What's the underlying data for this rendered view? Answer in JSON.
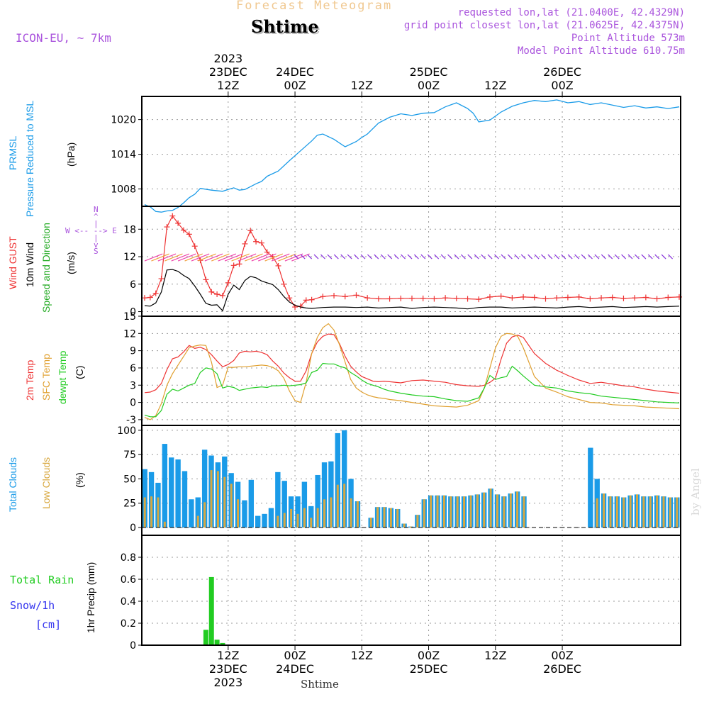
{
  "header": {
    "supertitle": "Forecast Meteogram",
    "station": "Shtime",
    "model": "ICON-EU, ~ 7km",
    "requested": "requested lon,lat (21.0400E, 42.4329N)",
    "gridpoint": "grid point closest lon,lat (21.0625E, 42.4375N)",
    "point_alt": "Point Altitude 573m",
    "model_alt": "Model Point Altitude 610.75m",
    "watermark": "by Angel",
    "footer_station": "Shtime"
  },
  "colors": {
    "pressure": "#1a9be8",
    "gust": "#ee3333",
    "wind": "#000000",
    "label_green": "#22aa22",
    "t2m": "#ee3333",
    "sfc": "#e0a030",
    "dewpt": "#22cc22",
    "total_cloud": "#1a9be8",
    "low_cloud": "#d8a840",
    "rain": "#22cc22",
    "snow": "#3333ee",
    "purple": "#aa55dd"
  },
  "panel_labels": {
    "p1": [
      "PRMSL",
      "Pressure Reduced to MSL",
      "(hPa)"
    ],
    "p2": [
      "Wind GUST",
      "10m Wind",
      "Speed and Direction",
      "(m/s)"
    ],
    "p3": [
      "2m Temp",
      "SFC Temp",
      "dewpt Temp",
      "(C)"
    ],
    "p4": [
      "Total Clouds",
      "Low Clouds",
      "(%)"
    ],
    "p5": [
      "Total  Rain",
      "Snow/1h",
      "[cm]",
      "1hr Precip (mm)"
    ],
    "compass": [
      "N",
      "^",
      "|",
      "W <-- --> E",
      "|",
      "v",
      "S"
    ]
  },
  "chart_data": {
    "type": "line",
    "time": {
      "start": "2023-12-22 21Z",
      "end": "2023-12-26 06Z",
      "step_hours": 1,
      "top_ticks": [
        {
          "h": 15,
          "lines": [
            "2023",
            "23DEC",
            "12Z"
          ]
        },
        {
          "h": 27,
          "lines": [
            "24DEC",
            "00Z"
          ]
        },
        {
          "h": 39,
          "lines": [
            "12Z"
          ]
        },
        {
          "h": 51,
          "lines": [
            "25DEC",
            "00Z"
          ]
        },
        {
          "h": 63,
          "lines": [
            "12Z"
          ]
        },
        {
          "h": 75,
          "lines": [
            "26DEC",
            "00Z"
          ]
        }
      ],
      "bottom_ticks": [
        {
          "h": 15,
          "lines": [
            "12Z",
            "23DEC",
            "2023"
          ]
        },
        {
          "h": 27,
          "lines": [
            "00Z",
            "24DEC"
          ]
        },
        {
          "h": 39,
          "lines": [
            "12Z"
          ]
        },
        {
          "h": 51,
          "lines": [
            "00Z",
            "25DEC"
          ]
        },
        {
          "h": 63,
          "lines": [
            "12Z"
          ]
        },
        {
          "h": 75,
          "lines": [
            "00Z",
            "26DEC"
          ]
        }
      ]
    },
    "pressure": {
      "ylabel": "PRMSL Pressure Reduced to MSL (hPa)",
      "yticks": [
        1008,
        1014,
        1020
      ],
      "ylim": [
        1005,
        1024
      ],
      "x": [
        0,
        1,
        2,
        3,
        4,
        5,
        6,
        7,
        8,
        9,
        10,
        12,
        14,
        15,
        16,
        17,
        18,
        19,
        20,
        21,
        22,
        24,
        26,
        28,
        30,
        31,
        32,
        34,
        36,
        38,
        39,
        40,
        42,
        44,
        46,
        48,
        50,
        52,
        54,
        56,
        58,
        59,
        60,
        62,
        64,
        66,
        68,
        70,
        72,
        74,
        76,
        78,
        80,
        82,
        84,
        86,
        88,
        90,
        92,
        94,
        96
      ],
      "values": [
        1005.3,
        1004.9,
        1004.1,
        1004.0,
        1004.2,
        1004.3,
        1004.8,
        1005.6,
        1006.5,
        1007.1,
        1008.1,
        1007.8,
        1007.6,
        1007.9,
        1008.2,
        1007.8,
        1007.9,
        1008.4,
        1008.9,
        1009.3,
        1010.2,
        1011.1,
        1012.9,
        1014.6,
        1016.3,
        1017.3,
        1017.5,
        1016.6,
        1015.3,
        1016.2,
        1016.9,
        1017.5,
        1019.4,
        1020.4,
        1021.0,
        1020.7,
        1021.1,
        1021.2,
        1022.2,
        1022.9,
        1021.9,
        1021.1,
        1019.6,
        1019.9,
        1021.3,
        1022.3,
        1022.9,
        1023.3,
        1023.1,
        1023.4,
        1022.9,
        1023.1,
        1022.6,
        1022.9,
        1022.5,
        1022.1,
        1022.4,
        1022.0,
        1022.2,
        1021.9,
        1022.2
      ]
    },
    "wind": {
      "ylabel": "(m/s)",
      "yticks": [
        0,
        6,
        12,
        18
      ],
      "ylim": [
        -1,
        23
      ],
      "gust_x": [
        0,
        1,
        2,
        3,
        4,
        5,
        6,
        7,
        8,
        9,
        10,
        11,
        12,
        13,
        14,
        15,
        16,
        17,
        18,
        19,
        20,
        21,
        22,
        23,
        24,
        25,
        26,
        27,
        28,
        29,
        30,
        32,
        34,
        36,
        38,
        40,
        42,
        44,
        46,
        48,
        50,
        52,
        54,
        56,
        58,
        60,
        62,
        64,
        66,
        68,
        70,
        72,
        74,
        76,
        78,
        80,
        82,
        84,
        86,
        88,
        90,
        92,
        94,
        96
      ],
      "gust": [
        3.0,
        3.1,
        4.0,
        7.2,
        18.5,
        20.9,
        19.3,
        17.8,
        16.9,
        14.3,
        11.2,
        7.0,
        4.3,
        3.8,
        3.5,
        6.3,
        10.1,
        10.4,
        14.8,
        17.7,
        15.3,
        15.0,
        13.0,
        12.0,
        10.0,
        6.0,
        3.0,
        1.0,
        1.2,
        2.5,
        2.6,
        3.3,
        3.5,
        3.3,
        3.6,
        3.0,
        2.8,
        2.8,
        2.9,
        2.9,
        2.9,
        2.8,
        3.0,
        2.9,
        2.8,
        2.7,
        3.2,
        3.4,
        3.0,
        3.2,
        3.1,
        2.8,
        3.0,
        3.1,
        3.2,
        2.8,
        3.0,
        3.1,
        2.9,
        3.0,
        3.1,
        2.8,
        3.1,
        3.2
      ],
      "wind_x": [
        0,
        1,
        2,
        3,
        4,
        5,
        6,
        7,
        8,
        9,
        10,
        11,
        12,
        13,
        14,
        15,
        16,
        17,
        18,
        19,
        20,
        21,
        22,
        23,
        24,
        25,
        26,
        27,
        28,
        29,
        30,
        32,
        34,
        36,
        38,
        40,
        42,
        44,
        46,
        48,
        50,
        52,
        54,
        56,
        58,
        60,
        62,
        64,
        66,
        68,
        70,
        72,
        74,
        76,
        78,
        80,
        82,
        84,
        86,
        88,
        90,
        92,
        94,
        96
      ],
      "wind": [
        1.3,
        1.2,
        1.9,
        4.3,
        9.1,
        9.2,
        8.8,
        7.9,
        7.2,
        5.6,
        3.8,
        1.8,
        1.4,
        1.5,
        0.2,
        3.8,
        5.8,
        4.8,
        6.8,
        7.7,
        7.4,
        6.7,
        6.3,
        5.9,
        4.8,
        3.3,
        2.1,
        1.4,
        1.0,
        0.8,
        0.7,
        0.9,
        1.0,
        1.0,
        0.9,
        1.0,
        0.8,
        0.9,
        1.0,
        0.7,
        0.9,
        1.0,
        0.9,
        0.8,
        0.6,
        0.9,
        1.0,
        1.0,
        0.8,
        0.9,
        1.0,
        0.9,
        0.8,
        1.0,
        1.1,
        0.9,
        1.0,
        1.1,
        0.9,
        1.0,
        1.1,
        1.0,
        1.1,
        1.2
      ]
    },
    "temperature": {
      "ylabel": "(C)",
      "yticks": [
        -3,
        0,
        3,
        6,
        9,
        12,
        15
      ],
      "ylim": [
        -4,
        15
      ],
      "x": [
        0,
        1,
        2,
        3,
        4,
        5,
        6,
        7,
        8,
        9,
        10,
        11,
        12,
        13,
        14,
        15,
        16,
        17,
        18,
        19,
        20,
        21,
        22,
        23,
        24,
        25,
        26,
        27,
        28,
        29,
        30,
        31,
        32,
        33,
        34,
        35,
        36,
        37,
        38,
        39,
        40,
        41,
        42,
        43,
        44,
        46,
        48,
        50,
        52,
        54,
        56,
        58,
        60,
        61,
        62,
        63,
        64,
        65,
        66,
        67,
        68,
        70,
        72,
        74,
        76,
        78,
        80,
        82,
        84,
        86,
        88,
        90,
        92,
        94,
        96
      ],
      "t2m": [
        1.7,
        1.8,
        2.2,
        3.3,
        5.7,
        7.6,
        7.9,
        8.8,
        9.9,
        9.4,
        9.6,
        9.2,
        8.3,
        7.2,
        6.2,
        6.6,
        7.3,
        8.6,
        8.9,
        8.8,
        8.9,
        8.7,
        8.3,
        7.2,
        6.3,
        5.1,
        4.3,
        3.7,
        3.7,
        5.5,
        8.5,
        10.5,
        11.5,
        11.9,
        11.8,
        10.2,
        8.0,
        6.3,
        5.3,
        4.5,
        4.1,
        3.7,
        3.6,
        3.7,
        3.6,
        3.4,
        3.8,
        3.9,
        3.7,
        3.5,
        3.1,
        2.9,
        2.8,
        3.0,
        3.5,
        4.2,
        7.5,
        10.3,
        11.4,
        11.7,
        11.3,
        8.5,
        6.8,
        5.6,
        4.7,
        3.9,
        3.3,
        3.5,
        3.2,
        2.9,
        2.7,
        2.3,
        2.0,
        1.8,
        1.6
      ],
      "sfc": [
        -2.6,
        -3.0,
        -2.3,
        -0.2,
        3.0,
        5.0,
        6.5,
        8.0,
        9.5,
        9.8,
        10.0,
        9.9,
        7.0,
        2.6,
        3.0,
        6.1,
        6.1,
        6.2,
        6.2,
        6.3,
        6.4,
        6.5,
        6.4,
        6.1,
        5.5,
        4.2,
        2.0,
        0.3,
        0.0,
        3.5,
        8.5,
        11.3,
        13.0,
        13.7,
        12.6,
        10.0,
        7.0,
        4.0,
        2.5,
        1.8,
        1.3,
        1.0,
        0.8,
        0.7,
        0.5,
        0.3,
        0.0,
        -0.3,
        -0.6,
        -0.7,
        -0.8,
        -0.5,
        0.3,
        2.5,
        6.0,
        9.5,
        11.5,
        12.0,
        11.9,
        11.5,
        9.5,
        4.5,
        2.5,
        1.8,
        1.0,
        0.5,
        0.0,
        -0.1,
        -0.4,
        -0.5,
        -0.6,
        -0.8,
        -0.9,
        -1.0,
        -1.1
      ],
      "dewpt": [
        -2.2,
        -2.5,
        -2.5,
        -1.4,
        1.4,
        2.3,
        2.0,
        2.5,
        3.0,
        3.3,
        5.2,
        6.0,
        5.8,
        5.0,
        2.5,
        2.8,
        2.6,
        2.1,
        2.3,
        2.5,
        2.6,
        2.7,
        2.6,
        2.9,
        2.9,
        3.0,
        2.9,
        3.0,
        3.1,
        3.4,
        5.2,
        5.6,
        6.8,
        6.7,
        6.7,
        6.3,
        6.0,
        5.2,
        4.6,
        3.9,
        3.3,
        3.0,
        2.7,
        2.3,
        2.0,
        1.6,
        1.3,
        1.1,
        1.0,
        0.6,
        0.3,
        0.2,
        0.8,
        2.5,
        4.7,
        4.0,
        4.3,
        4.5,
        6.3,
        5.5,
        4.6,
        3.0,
        2.7,
        2.5,
        2.0,
        1.7,
        1.5,
        1.1,
        0.9,
        0.7,
        0.5,
        0.3,
        0.1,
        0.0,
        -0.1
      ]
    },
    "clouds": {
      "ylabel": "(%)",
      "yticks": [
        0,
        25,
        50,
        75,
        100
      ],
      "ylim": [
        -8,
        105
      ],
      "total": [
        60,
        57,
        46,
        86,
        72,
        70,
        58,
        29,
        31,
        80,
        74,
        67,
        73,
        56,
        47,
        28,
        49,
        12,
        14,
        20,
        57,
        48,
        32,
        32,
        47,
        22,
        54,
        67,
        68,
        97,
        100,
        50,
        27,
        0,
        10,
        21,
        21,
        20,
        19,
        4,
        1,
        13,
        29,
        33,
        33,
        33,
        32,
        32,
        32,
        33,
        34,
        36,
        40,
        34,
        32,
        35,
        37,
        32,
        0,
        0,
        0,
        0,
        0,
        0,
        0,
        0,
        0,
        82,
        50,
        35,
        32,
        32,
        31,
        33,
        34,
        32,
        32,
        33,
        32,
        31,
        31
      ],
      "low": [
        31,
        32,
        31,
        6,
        0,
        0,
        0,
        0,
        12,
        26,
        59,
        58,
        52,
        45,
        29,
        0,
        0,
        0,
        0,
        0,
        12,
        15,
        19,
        14,
        20,
        10,
        20,
        29,
        31,
        44,
        45,
        30,
        27,
        0,
        10,
        21,
        21,
        20,
        19,
        4,
        1,
        13,
        29,
        33,
        33,
        33,
        32,
        32,
        32,
        33,
        34,
        36,
        40,
        34,
        32,
        35,
        37,
        32,
        0,
        0,
        0,
        0,
        0,
        0,
        0,
        0,
        0,
        0,
        30,
        35,
        32,
        32,
        31,
        33,
        34,
        32,
        32,
        33,
        32,
        31,
        31
      ]
    },
    "precip": {
      "ylabel": "1hr Precip (mm)",
      "yticks": [
        0,
        0.2,
        0.4,
        0.6,
        0.8
      ],
      "ylim": [
        0,
        1.0
      ],
      "x": [
        11,
        12,
        13,
        14
      ],
      "rain": [
        0.14,
        0.62,
        0.05,
        0.02
      ],
      "snow": []
    }
  }
}
